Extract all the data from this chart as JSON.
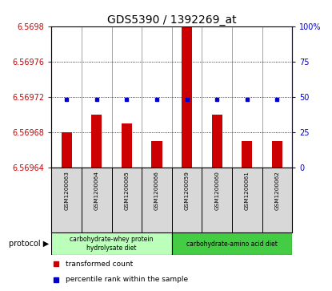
{
  "title": "GDS5390 / 1392269_at",
  "samples": [
    "GSM1200063",
    "GSM1200064",
    "GSM1200065",
    "GSM1200066",
    "GSM1200059",
    "GSM1200060",
    "GSM1200061",
    "GSM1200062"
  ],
  "transformed_counts": [
    6.56968,
    6.5697,
    6.56969,
    6.56967,
    6.5698,
    6.5697,
    6.56967,
    6.56967
  ],
  "percentile_ranks": [
    48,
    48,
    48,
    48,
    48,
    48,
    48,
    48
  ],
  "ylim_left": [
    6.56964,
    6.5698
  ],
  "ylim_right": [
    0,
    100
  ],
  "yticks_left": [
    6.56964,
    6.56968,
    6.56972,
    6.56976,
    6.5698
  ],
  "yticks_right": [
    0,
    25,
    50,
    75,
    100
  ],
  "bar_color": "#cc0000",
  "dot_color": "#0000cc",
  "group1_label": "carbohydrate-whey protein\nhydrolysate diet",
  "group2_label": "carbohydrate-amino acid diet",
  "group1_color": "#bbffbb",
  "group2_color": "#44cc44",
  "protocol_label": "protocol",
  "legend_bar_label": "transformed count",
  "legend_dot_label": "percentile rank within the sample",
  "title_fontsize": 10,
  "tick_fontsize": 7,
  "background_color": "#ffffff"
}
